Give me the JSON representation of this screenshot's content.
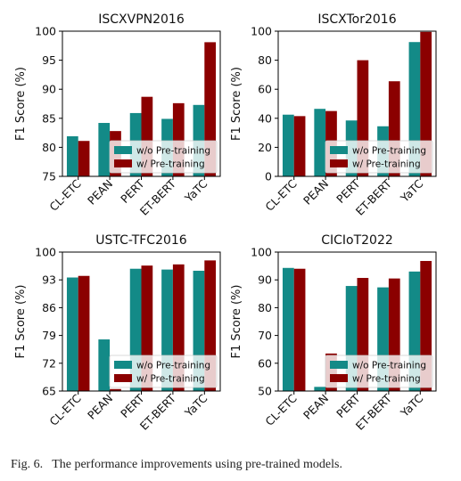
{
  "colors": {
    "wo": "#138a87",
    "w": "#8b0000"
  },
  "legend": {
    "wo_label": "w/o Pre-training",
    "w_label": "w/ Pre-training",
    "placement": "lower-right"
  },
  "caption": {
    "label": "Fig. 6.",
    "text": "The performance improvements using pre-trained models."
  },
  "chart_data": [
    {
      "type": "bar",
      "title": "ISCXVPN2016",
      "ylabel": "F1 Score (%)",
      "xlabel": "",
      "categories": [
        "CL-ETC",
        "PEAN",
        "PERT",
        "ET-BERT",
        "YaTC"
      ],
      "series": [
        {
          "name": "w/o Pre-training",
          "values": [
            81.9,
            84.2,
            85.9,
            84.9,
            87.3
          ]
        },
        {
          "name": "w/ Pre-training",
          "values": [
            81.1,
            82.8,
            88.7,
            87.6,
            98.1
          ]
        }
      ],
      "ylim": [
        75,
        100
      ],
      "yticks": [
        75,
        80,
        85,
        90,
        95,
        100
      ],
      "grid": false
    },
    {
      "type": "bar",
      "title": "ISCXTor2016",
      "ylabel": "F1 Score (%)",
      "xlabel": "",
      "categories": [
        "CL-ETC",
        "PEAN",
        "PERT",
        "ET-BERT",
        "YaTC"
      ],
      "series": [
        {
          "name": "w/o Pre-training",
          "values": [
            42.5,
            46.5,
            38.5,
            34.5,
            92.5
          ]
        },
        {
          "name": "w/ Pre-training",
          "values": [
            41.5,
            45.0,
            80.0,
            65.5,
            99.5
          ]
        }
      ],
      "ylim": [
        0,
        100
      ],
      "yticks": [
        0,
        20,
        40,
        60,
        80,
        100
      ],
      "grid": false
    },
    {
      "type": "bar",
      "title": "USTC-TFC2016",
      "ylabel": "F1 Score (%)",
      "xlabel": "",
      "categories": [
        "CL-ETC",
        "PEAN",
        "PERT",
        "ET-BERT",
        "YaTC"
      ],
      "series": [
        {
          "name": "w/o Pre-training",
          "values": [
            93.6,
            78.0,
            95.8,
            95.6,
            95.3
          ]
        },
        {
          "name": "w/ Pre-training",
          "values": [
            94.0,
            65.5,
            96.6,
            96.9,
            97.9
          ]
        }
      ],
      "ylim": [
        65,
        100
      ],
      "yticks": [
        65,
        72,
        79,
        86,
        93,
        100
      ],
      "grid": false
    },
    {
      "type": "bar",
      "title": "CICIoT2022",
      "ylabel": "F1 Score (%)",
      "xlabel": "",
      "categories": [
        "CL-ETC",
        "PEAN",
        "PERT",
        "ET-BERT",
        "YaTC"
      ],
      "series": [
        {
          "name": "w/o Pre-training",
          "values": [
            94.3,
            51.5,
            87.8,
            87.3,
            93.0
          ]
        },
        {
          "name": "w/ Pre-training",
          "values": [
            94.0,
            63.5,
            90.7,
            90.5,
            96.8
          ]
        }
      ],
      "ylim": [
        50,
        100
      ],
      "yticks": [
        50,
        60,
        70,
        80,
        90,
        100
      ],
      "grid": false
    }
  ]
}
